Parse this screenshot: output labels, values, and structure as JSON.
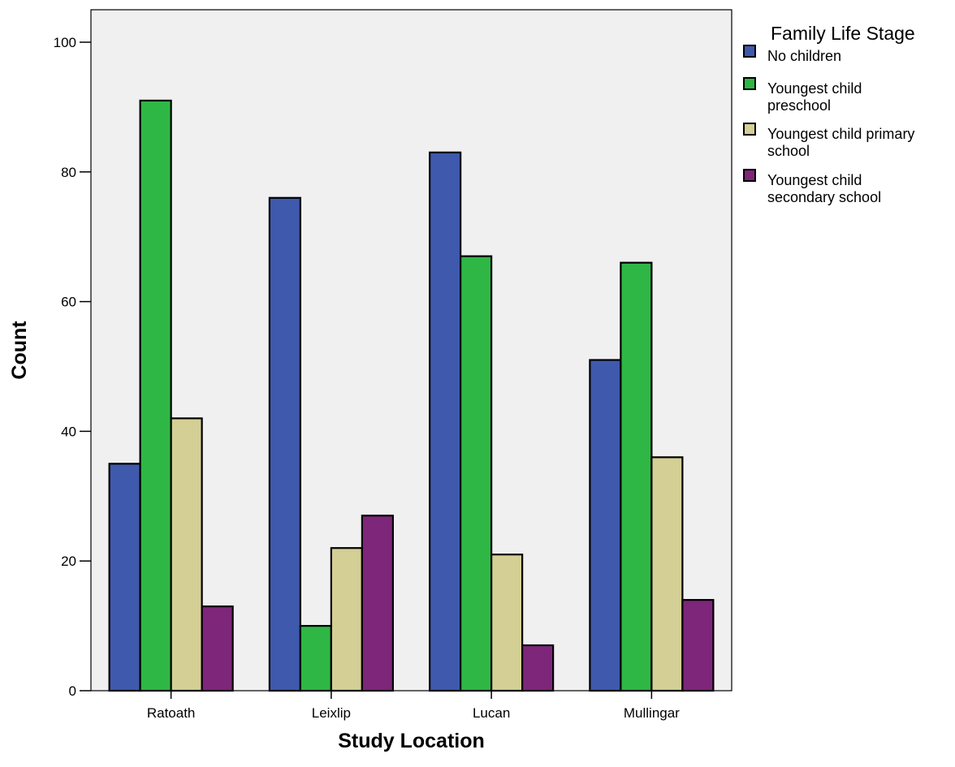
{
  "chart_data": {
    "type": "bar",
    "xlabel": "Study Location",
    "ylabel": "Count",
    "ylim": [
      0,
      100
    ],
    "yticks": [
      0,
      20,
      40,
      60,
      80,
      100
    ],
    "grid": false,
    "legend_position": "right",
    "legend_title": "Family Life Stage",
    "categories": [
      "Ratoath",
      "Leixlip",
      "Lucan",
      "Mullingar"
    ],
    "series": [
      {
        "name": "No children",
        "legend_lines": [
          "No children"
        ],
        "color": "#3f59ad",
        "values": [
          35,
          76,
          83,
          51
        ]
      },
      {
        "name": "Youngest child preschool",
        "legend_lines": [
          "Youngest child",
          "preschool"
        ],
        "color": "#2fb746",
        "values": [
          91,
          10,
          67,
          66
        ]
      },
      {
        "name": "Youngest child primary school",
        "legend_lines": [
          "Youngest child primary",
          "school"
        ],
        "color": "#d4cf95",
        "values": [
          42,
          22,
          21,
          36
        ]
      },
      {
        "name": "Youngest child secondary school",
        "legend_lines": [
          "Youngest child",
          "secondary school"
        ],
        "color": "#7e267a",
        "values": [
          13,
          27,
          7,
          14
        ]
      }
    ],
    "plot_background": "#f0f0f0"
  }
}
